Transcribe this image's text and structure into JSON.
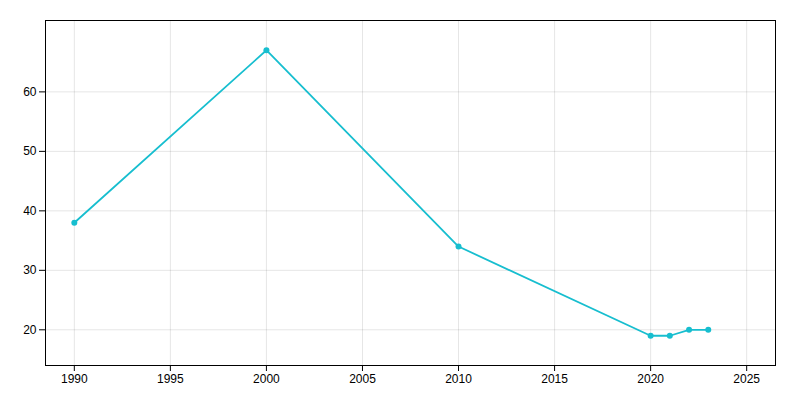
{
  "chart_data": {
    "type": "line",
    "x": [
      1990,
      2000,
      2010,
      2020,
      2021,
      2022,
      2023
    ],
    "values": [
      38,
      67,
      34,
      19,
      19,
      20,
      20
    ],
    "color": "#17becf",
    "marker": "circle",
    "xlim": [
      1988.5,
      2026.5
    ],
    "ylim": [
      14,
      72
    ],
    "xticks": [
      1990,
      1995,
      2000,
      2005,
      2010,
      2015,
      2020,
      2025
    ],
    "yticks": [
      20,
      30,
      40,
      50,
      60
    ],
    "grid": true
  }
}
